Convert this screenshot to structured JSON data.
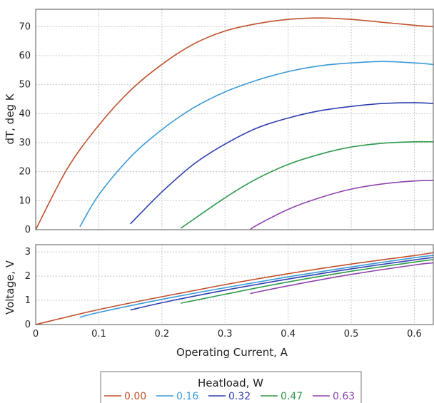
{
  "chart_data": {
    "type": "line",
    "xlabel": "Operating Current, A",
    "xlim": [
      0,
      0.63
    ],
    "xticks": [
      "0",
      "0.1",
      "0.2",
      "0.3",
      "0.4",
      "0.5",
      "0.6"
    ],
    "xtick_values": [
      0,
      0.1,
      0.2,
      0.3,
      0.4,
      0.5,
      0.6
    ],
    "grid": true,
    "legend_placement": "bottom",
    "legend_title": "Heatload, W",
    "panels": [
      {
        "ylabel": "dT, deg K",
        "ylim": [
          0,
          76
        ],
        "yticks": [
          "0",
          "10",
          "20",
          "30",
          "40",
          "50",
          "60",
          "70"
        ],
        "ytick_values": [
          0,
          10,
          20,
          30,
          40,
          50,
          60,
          70
        ],
        "series": [
          {
            "name": "0.00",
            "color": "#c0502c",
            "x": [
              0,
              0.05,
              0.1,
              0.15,
              0.2,
              0.25,
              0.3,
              0.35,
              0.4,
              0.45,
              0.5,
              0.55,
              0.6,
              0.63
            ],
            "y": [
              0,
              21,
              36,
              48,
              57,
              64,
              68.5,
              71,
              72.5,
              73,
              72.5,
              71.5,
              70.5,
              70
            ]
          },
          {
            "name": "0.16",
            "color": "#3a9ad9",
            "x": [
              0.07,
              0.1,
              0.15,
              0.2,
              0.25,
              0.3,
              0.35,
              0.4,
              0.45,
              0.5,
              0.55,
              0.6,
              0.63
            ],
            "y": [
              1,
              12,
              25,
              34.5,
              42,
              47.5,
              51.5,
              54.5,
              56.5,
              57.5,
              58,
              57.5,
              57
            ]
          },
          {
            "name": "0.32",
            "color": "#2e3fae",
            "x": [
              0.15,
              0.2,
              0.25,
              0.3,
              0.35,
              0.4,
              0.45,
              0.5,
              0.55,
              0.6,
              0.63
            ],
            "y": [
              2,
              13,
              22.5,
              29.5,
              35,
              38.5,
              41,
              42.5,
              43.5,
              43.8,
              43.5
            ]
          },
          {
            "name": "0.47",
            "color": "#2e9a4a",
            "x": [
              0.23,
              0.3,
              0.35,
              0.4,
              0.45,
              0.5,
              0.55,
              0.6,
              0.63
            ],
            "y": [
              0.5,
              11,
              17.5,
              22.5,
              26,
              28.5,
              29.8,
              30.3,
              30.3
            ]
          },
          {
            "name": "0.63",
            "color": "#8e44ad",
            "x": [
              0.34,
              0.35,
              0.4,
              0.45,
              0.5,
              0.55,
              0.6,
              0.63
            ],
            "y": [
              0,
              1.5,
              7,
              11,
              14,
              15.8,
              16.8,
              17
            ]
          }
        ]
      },
      {
        "ylabel": "Voltage, V",
        "ylim": [
          0,
          3.3
        ],
        "yticks": [
          "0",
          "1",
          "2",
          "3"
        ],
        "ytick_values": [
          0,
          1,
          2,
          3
        ],
        "series": [
          {
            "name": "0.00",
            "color": "#c0502c",
            "x": [
              0,
              0.1,
              0.2,
              0.3,
              0.4,
              0.5,
              0.6,
              0.63
            ],
            "y": [
              0,
              0.62,
              1.15,
              1.65,
              2.1,
              2.5,
              2.85,
              2.97
            ]
          },
          {
            "name": "0.16",
            "color": "#3a9ad9",
            "x": [
              0.07,
              0.1,
              0.2,
              0.3,
              0.4,
              0.5,
              0.6,
              0.63
            ],
            "y": [
              0.3,
              0.5,
              1.04,
              1.52,
              1.97,
              2.38,
              2.76,
              2.86
            ]
          },
          {
            "name": "0.32",
            "color": "#2e3fae",
            "x": [
              0.15,
              0.2,
              0.3,
              0.4,
              0.5,
              0.6,
              0.63
            ],
            "y": [
              0.6,
              0.9,
              1.42,
              1.88,
              2.3,
              2.67,
              2.77
            ]
          },
          {
            "name": "0.47",
            "color": "#2e9a4a",
            "x": [
              0.23,
              0.3,
              0.4,
              0.5,
              0.6,
              0.63
            ],
            "y": [
              0.88,
              1.25,
              1.76,
              2.2,
              2.58,
              2.68
            ]
          },
          {
            "name": "0.63",
            "color": "#8e44ad",
            "x": [
              0.34,
              0.4,
              0.5,
              0.6,
              0.63
            ],
            "y": [
              1.28,
              1.6,
              2.07,
              2.46,
              2.55
            ]
          }
        ]
      }
    ]
  }
}
